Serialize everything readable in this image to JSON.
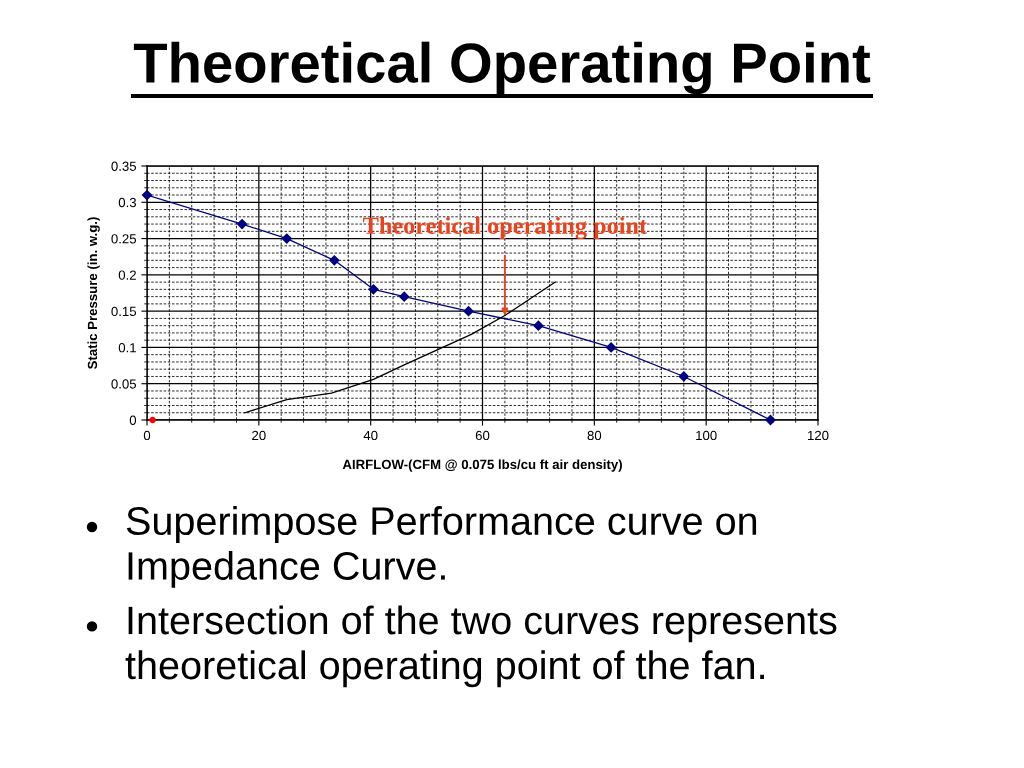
{
  "chart_data": {
    "type": "line",
    "title": "Theoretical Operating Point",
    "xlabel": "AIRFLOW-(CFM @ 0.075 lbs/cu ft air density)",
    "ylabel": "Static Pressure (in. w.g.)",
    "series": [
      {
        "color": "#000080",
        "marker": "diamond",
        "x": [
          0,
          17,
          25,
          33.5,
          40.5,
          46,
          57.5,
          70,
          83,
          96,
          111.5
        ],
        "values": [
          0.31,
          0.27,
          0.25,
          0.22,
          0.18,
          0.17,
          0.15,
          0.13,
          0.1,
          0.06,
          0
        ]
      },
      {
        "color": "#000000",
        "marker": "none",
        "x": [
          17.5,
          25,
          33,
          40.5,
          46,
          52,
          58,
          64,
          73
        ],
        "values": [
          0.01,
          0.028,
          0.037,
          0.056,
          0.076,
          0.097,
          0.118,
          0.144,
          0.19
        ]
      },
      {
        "type": "scatter",
        "color": "#ff0000",
        "marker": "circle",
        "x": [
          1
        ],
        "values": [
          0
        ]
      }
    ],
    "xlim": [
      0,
      120
    ],
    "ylim": [
      0,
      0.35
    ],
    "xticks": [
      0,
      {
        "value": 4,
        "label": null
      },
      {
        "value": 8,
        "label": null
      },
      {
        "value": 12,
        "label": null
      },
      {
        "value": 16,
        "label": null
      },
      20,
      {
        "value": 24,
        "label": null
      },
      {
        "value": 28,
        "label": null
      },
      {
        "value": 32,
        "label": null
      },
      {
        "value": 36,
        "label": null
      },
      40,
      {
        "value": 44,
        "label": null
      },
      {
        "value": 48,
        "label": null
      },
      {
        "value": 52,
        "label": null
      },
      {
        "value": 56,
        "label": null
      },
      60,
      {
        "value": 64,
        "label": null
      },
      {
        "value": 68,
        "label": null
      },
      {
        "value": 72,
        "label": null
      },
      {
        "value": 76,
        "label": null
      },
      80,
      {
        "value": 84,
        "label": null
      },
      {
        "value": 88,
        "label": null
      },
      {
        "value": 92,
        "label": null
      },
      {
        "value": 96,
        "label": null
      },
      100,
      {
        "value": 104,
        "label": null
      },
      {
        "value": 108,
        "label": null
      },
      {
        "value": 112,
        "label": null
      },
      {
        "value": 116,
        "label": null
      },
      120
    ],
    "yticks": [
      0,
      {
        "value": 0.01,
        "label": null
      },
      {
        "value": 0.02,
        "label": null
      },
      {
        "value": 0.03,
        "label": null
      },
      {
        "value": 0.04,
        "label": null
      },
      0.05,
      {
        "value": 0.06,
        "label": null
      },
      {
        "value": 0.07,
        "label": null
      },
      {
        "value": 0.08,
        "label": null
      },
      {
        "value": 0.09,
        "label": null
      },
      0.1,
      {
        "value": 0.11,
        "label": null
      },
      {
        "value": 0.12,
        "label": null
      },
      {
        "value": 0.13,
        "label": null
      },
      {
        "value": 0.14,
        "label": null
      },
      0.15,
      {
        "value": 0.16,
        "label": null
      },
      {
        "value": 0.17,
        "label": null
      },
      {
        "value": 0.18,
        "label": null
      },
      {
        "value": 0.19,
        "label": null
      },
      0.2,
      {
        "value": 0.21,
        "label": null
      },
      {
        "value": 0.22,
        "label": null
      },
      {
        "value": 0.23,
        "label": null
      },
      {
        "value": 0.24,
        "label": null
      },
      0.25,
      {
        "value": 0.26,
        "label": null
      },
      {
        "value": 0.27,
        "label": null
      },
      {
        "value": 0.28,
        "label": null
      },
      {
        "value": 0.29,
        "label": null
      },
      0.3,
      {
        "value": 0.31,
        "label": null
      },
      {
        "value": 0.32,
        "label": null
      },
      {
        "value": 0.33,
        "label": null
      },
      {
        "value": 0.34,
        "label": null
      },
      0.35
    ],
    "grid": true,
    "annotations": [
      {
        "text": "Theoretical operating point",
        "x": 64,
        "y": 0.144
      },
      "Superimpose Performance curve on Impedance Curve.",
      "Intersection of the two curves represents theoretical operating point of the fan."
    ]
  }
}
